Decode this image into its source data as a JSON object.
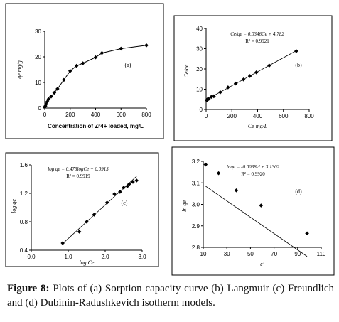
{
  "caption": {
    "label": "Figure 8:",
    "text": "Plots of (a) Sorption capacity curve (b) Langmuir (c) Freundlich and (d) Dubinin-Radushkevich isotherm models."
  },
  "chart_data": [
    {
      "id": "a",
      "type": "line",
      "panel_label": "(a)",
      "title": "",
      "xlabel": "Concentration of Zr4+ loaded, mg/L",
      "ylabel": "qe mg/g",
      "xlim": [
        0,
        800
      ],
      "ylim": [
        0,
        30
      ],
      "xticks": [
        0,
        200,
        400,
        600,
        800
      ],
      "yticks": [
        0,
        10,
        20,
        30
      ],
      "grid": false,
      "series": [
        {
          "x": [
            0,
            5,
            10,
            20,
            30,
            50,
            75,
            100,
            150,
            200,
            250,
            300,
            400,
            450,
            600,
            800
          ],
          "y": [
            0.4,
            0.8,
            1.5,
            2.5,
            3.5,
            4.5,
            6.0,
            7.5,
            11.0,
            14.5,
            16.5,
            17.5,
            19.8,
            21.5,
            23.2,
            24.5
          ]
        }
      ]
    },
    {
      "id": "b",
      "type": "scatter",
      "panel_label": "(b)",
      "title": "",
      "xlabel": "Ce mg/L",
      "ylabel": "Ce/qe",
      "xlim": [
        0,
        800
      ],
      "ylim": [
        0,
        40
      ],
      "xticks": [
        0,
        200,
        400,
        600,
        800
      ],
      "yticks": [
        0,
        10,
        20,
        30,
        40
      ],
      "grid": false,
      "equation": "Ce/qe = 0.0346Ce + 4.782",
      "r2": "R² = 0.9921",
      "fit": {
        "slope": 0.0346,
        "intercept": 4.782
      },
      "series": [
        {
          "x": [
            5,
            10,
            20,
            40,
            60,
            110,
            170,
            230,
            290,
            340,
            390,
            490,
            700
          ],
          "y": [
            4.5,
            5.0,
            5.2,
            6.2,
            6.5,
            8.5,
            10.9,
            12.8,
            14.8,
            16.5,
            18.3,
            21.7,
            28.8
          ]
        }
      ]
    },
    {
      "id": "c",
      "type": "scatter",
      "panel_label": "(c)",
      "title": "",
      "xlabel": "log Ce",
      "ylabel": "log qe",
      "xlim": [
        0,
        3
      ],
      "ylim": [
        0.4,
        1.6
      ],
      "xticks": [
        0,
        1.0,
        2.0,
        3.0
      ],
      "xticklabels": [
        "0.0",
        "1.0",
        "2.0",
        "3.0"
      ],
      "yticks": [
        0.4,
        0.8,
        1.2,
        1.6
      ],
      "grid": false,
      "equation": "log qe = 0.473logCe + 0.0913",
      "r2": "R² = 0.9919",
      "fit": {
        "slope": 0.473,
        "intercept": 0.0913
      },
      "series": [
        {
          "x": [
            0.85,
            1.3,
            1.5,
            1.7,
            2.05,
            2.25,
            2.4,
            2.5,
            2.6,
            2.65,
            2.75,
            2.85
          ],
          "y": [
            0.5,
            0.66,
            0.8,
            0.9,
            1.07,
            1.19,
            1.22,
            1.28,
            1.3,
            1.33,
            1.36,
            1.38
          ]
        }
      ]
    },
    {
      "id": "d",
      "type": "scatter",
      "panel_label": "(d)",
      "title": "",
      "xlabel": "ε²",
      "ylabel": "ln qe",
      "xlim": [
        10,
        110
      ],
      "ylim": [
        2.8,
        3.2
      ],
      "xticks": [
        10,
        30,
        50,
        70,
        90,
        110
      ],
      "yticks": [
        2.8,
        2.9,
        3.0,
        3.1,
        3.2
      ],
      "yticklabels": [
        "2.8",
        "2.9",
        "3.0",
        "3.1",
        "3.2"
      ],
      "grid": false,
      "equation": "lnqe = -0.0038ε² + 3.1302",
      "r2": "R² = 0.9920",
      "fit": {
        "slope": -0.0038,
        "intercept": 3.1302
      },
      "series": [
        {
          "x": [
            12,
            23,
            38,
            59,
            98
          ],
          "y": [
            3.185,
            3.145,
            3.065,
            2.995,
            2.865
          ]
        }
      ]
    }
  ]
}
